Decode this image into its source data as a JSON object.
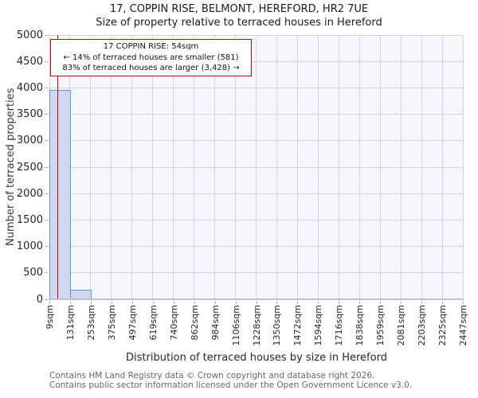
{
  "title": "17, COPPIN RISE, BELMONT, HEREFORD, HR2 7UE",
  "subtitle": "Size of property relative to terraced houses in Hereford",
  "annotation": {
    "line1": "17 COPPIN RISE: 54sqm",
    "line2": "← 14% of terraced houses are smaller (581)",
    "line3": "83% of terraced houses are larger (3,428) →"
  },
  "footer": {
    "line1": "Contains HM Land Registry data © Crown copyright and database right 2026.",
    "line2": "Contains public sector information licensed under the Open Government Licence v3.0."
  },
  "colors": {
    "bar_fill": "#ccd9f0",
    "bar_edge": "#6a93ca",
    "marker_red": "#cc0000",
    "grid": "#d3d3dc",
    "plot_background": "#f4f6fc",
    "axis_line": "#c0c0c8"
  },
  "chart_data": {
    "type": "bar",
    "title": "17, COPPIN RISE, BELMONT, HEREFORD, HR2 7UE",
    "subtitle": "Size of property relative to terraced houses in Hereford",
    "xlabel": "Distribution of terraced houses by size in Hereford",
    "ylabel": "Number of terraced properties",
    "ylim": [
      0,
      5000
    ],
    "y_ticks": [
      0,
      500,
      1000,
      1500,
      2000,
      2500,
      3000,
      3500,
      4000,
      4500,
      5000
    ],
    "x_tick_labels": [
      "9sqm",
      "131sqm",
      "253sqm",
      "375sqm",
      "497sqm",
      "619sqm",
      "740sqm",
      "862sqm",
      "984sqm",
      "1106sqm",
      "1228sqm",
      "1350sqm",
      "1472sqm",
      "1594sqm",
      "1716sqm",
      "1838sqm",
      "1959sqm",
      "2081sqm",
      "2203sqm",
      "2325sqm",
      "2447sqm"
    ],
    "bin_edges_sqm": [
      9,
      131,
      253,
      375,
      497,
      619,
      740,
      862,
      984,
      1106,
      1228,
      1350,
      1472,
      1594,
      1716,
      1838,
      1959,
      2081,
      2203,
      2325,
      2447
    ],
    "values": [
      3960,
      180,
      0,
      0,
      0,
      0,
      0,
      0,
      0,
      0,
      0,
      0,
      0,
      0,
      0,
      0,
      0,
      0,
      0,
      0
    ],
    "marker_value_sqm": 54,
    "grid": true,
    "legend": null
  }
}
